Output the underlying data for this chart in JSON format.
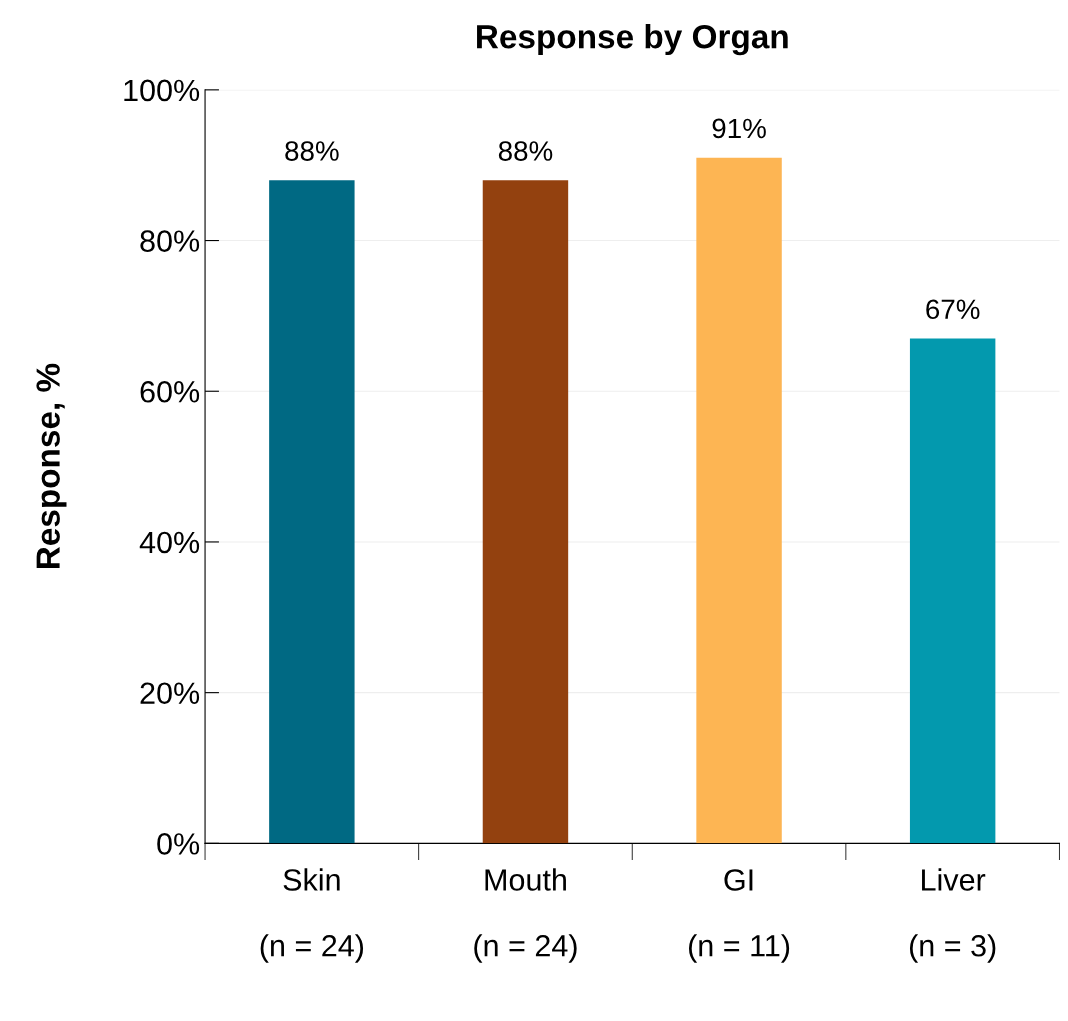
{
  "chart_data": {
    "type": "bar",
    "title": "Response by Organ",
    "ylabel": "Response, %",
    "categories": [
      "Skin\n\n(n = 24)",
      "Mouth\n\n(n = 24)",
      "GI\n\n(n = 11)",
      "Liver\n\n(n = 3)"
    ],
    "values": [
      88,
      88,
      91,
      67
    ],
    "colors": [
      "#006983",
      "#93410f",
      "#fdb553",
      "#0399ae"
    ],
    "value_labels": [
      "88%",
      "88%",
      "91%",
      "67%"
    ],
    "ylim": [
      0,
      100
    ],
    "yticks": [
      {
        "value": 0,
        "label": "0%"
      },
      {
        "value": 20,
        "label": "20%"
      },
      {
        "value": 40,
        "label": "40%"
      },
      {
        "value": 60,
        "label": "60%"
      },
      {
        "value": 80,
        "label": "80%"
      },
      {
        "value": 100,
        "label": "100%"
      }
    ],
    "grid": "y",
    "legend": false
  }
}
